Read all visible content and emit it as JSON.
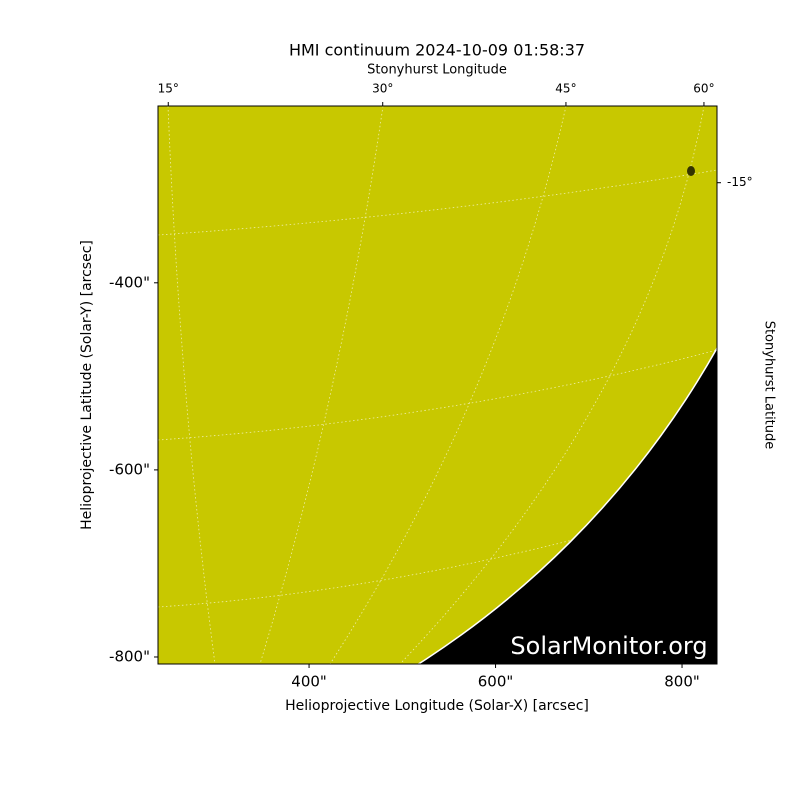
{
  "chart_data": {
    "type": "image",
    "title": "HMI continuum 2024-10-09 01:58:37",
    "top_axis_label": "Stonyhurst Longitude",
    "right_axis_label": "Stonyhurst Latitude",
    "xlabel": "Helioprojective Longitude (Solar-X) [arcsec]",
    "ylabel": "Helioprojective Latitude (Solar-Y) [arcsec]",
    "watermark": "SolarMonitor.org",
    "color": "#c8c800",
    "xlim": [
      238,
      837.5
    ],
    "ylim": [
      -807.5,
      -211
    ],
    "xticks": [
      {
        "value": 400,
        "label": "400\""
      },
      {
        "value": 600,
        "label": "600\""
      },
      {
        "value": 800,
        "label": "800\""
      }
    ],
    "yticks": [
      {
        "value": -400,
        "label": "-400\""
      },
      {
        "value": -600,
        "label": "-600\""
      },
      {
        "value": -800,
        "label": "-800\""
      }
    ],
    "top_ticks": [
      {
        "value": 15,
        "label": "15°",
        "x": 249
      },
      {
        "value": 30,
        "label": "30°",
        "x": 479
      },
      {
        "value": 45,
        "label": "45°",
        "x": 675.5
      },
      {
        "value": 60,
        "label": "60°",
        "x": 823.5
      }
    ],
    "right_ticks": [
      {
        "value": -15,
        "label": "-15°",
        "y": -293
      }
    ]
  }
}
